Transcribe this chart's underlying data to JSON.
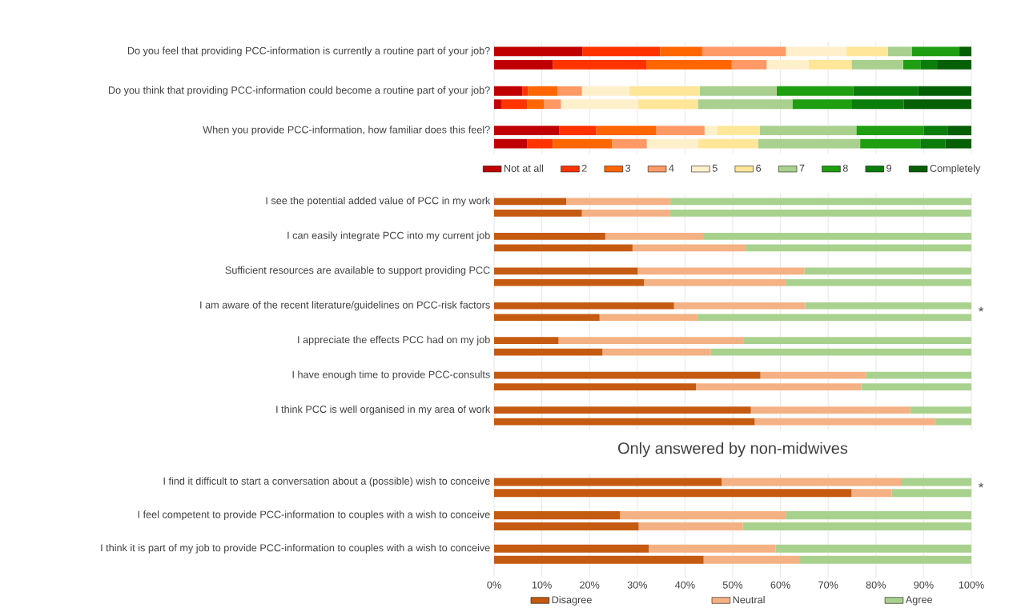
{
  "chart_data": [
    {
      "type": "bar",
      "orientation": "horizontal",
      "stacked": true,
      "grid": "x",
      "legend": "bottom",
      "tick_labels": "y",
      "xlim": [
        0,
        100
      ],
      "xticks": [
        {
          "value": 0,
          "label": null
        },
        {
          "value": 10,
          "label": null
        },
        {
          "value": 20,
          "label": null
        },
        {
          "value": 30,
          "label": null
        },
        {
          "value": 40,
          "label": null
        },
        {
          "value": 50,
          "label": null
        },
        {
          "value": 60,
          "label": null
        },
        {
          "value": 70,
          "label": null
        },
        {
          "value": 80,
          "label": null
        },
        {
          "value": 90,
          "label": null
        },
        {
          "value": 100,
          "label": null
        }
      ],
      "categories": [
        "Do you feel that providing PCC-information is currently a routine part of your job?",
        null,
        "Do you think that providing PCC-information could become a routine part of your job?",
        null,
        "When you provide PCC-information, how familiar does this feel?",
        null
      ],
      "series": [
        {
          "name": "Not at all",
          "color": "#c00000",
          "values": [
            18.5,
            12.3,
            5.9,
            1.5,
            13.6,
            6.9
          ]
        },
        {
          "name": "2",
          "color": "#ff3300",
          "values": [
            16.3,
            19.7,
            1.2,
            5.4,
            7.8,
            5.4
          ]
        },
        {
          "name": "3",
          "color": "#ff6600",
          "values": [
            8.8,
            17.8,
            6.2,
            3.6,
            12.6,
            12.4
          ]
        },
        {
          "name": "4",
          "color": "#ff9966",
          "values": [
            17.5,
            7.3,
            5.1,
            3.5,
            10.1,
            7.3
          ]
        },
        {
          "name": "5",
          "color": "#fff0cc",
          "values": [
            12.7,
            8.8,
            9.9,
            16.2,
            2.6,
            10.7
          ]
        },
        {
          "name": "6",
          "color": "#ffe699",
          "values": [
            8.7,
            9.0,
            14.8,
            12.5,
            9.0,
            12.6
          ]
        },
        {
          "name": "7",
          "color": "#a9d08e",
          "values": [
            5.0,
            10.8,
            16.1,
            19.8,
            20.2,
            21.4
          ]
        },
        {
          "name": "8",
          "color": "#1e9e10",
          "values": [
            10.0,
            3.6,
            16.1,
            12.5,
            14.1,
            12.6
          ]
        },
        {
          "name": "9",
          "color": "#0a7d0a",
          "values": [
            0,
            3.5,
            13.6,
            10.8,
            5.0,
            5.3
          ]
        },
        {
          "name": "Completely",
          "color": "#055f05",
          "values": [
            2.5,
            7.2,
            11.1,
            14.2,
            5.0,
            5.4
          ]
        }
      ]
    },
    {
      "type": "bar",
      "orientation": "horizontal",
      "stacked": true,
      "grid": "x",
      "tick_labels": "y",
      "xlim": [
        0,
        100
      ],
      "xticks": [
        {
          "value": 0,
          "label": null
        },
        {
          "value": 10,
          "label": null
        },
        {
          "value": 20,
          "label": null
        },
        {
          "value": 30,
          "label": null
        },
        {
          "value": 40,
          "label": null
        },
        {
          "value": 50,
          "label": null
        },
        {
          "value": 60,
          "label": null
        },
        {
          "value": 70,
          "label": null
        },
        {
          "value": 80,
          "label": null
        },
        {
          "value": 90,
          "label": null
        },
        {
          "value": 100,
          "label": null
        }
      ],
      "categories": [
        "I see the potential added value of PCC in my work",
        null,
        "I can easily integrate PCC into my current job",
        null,
        "Sufficient resources are available to support providing PCC",
        null,
        "I am aware of the recent literature/guidelines on PCC-risk factors",
        null,
        "I appreciate the effects PCC had on my job",
        null,
        "I have enough time to provide PCC-consults",
        null,
        "I think PCC is well organised in my area of work",
        null
      ],
      "series": [
        {
          "color": "#c55a11",
          "values": [
            15.1,
            18.4,
            23.3,
            29.0,
            30.1,
            31.4,
            37.7,
            22.1,
            13.5,
            22.7,
            55.8,
            42.3,
            53.8,
            54.6
          ]
        },
        {
          "color": "#f4b183",
          "values": [
            21.8,
            18.5,
            20.5,
            23.7,
            34.9,
            29.7,
            27.5,
            20.5,
            38.7,
            22.7,
            22.1,
            34.6,
            33.4,
            37.8
          ]
        },
        {
          "color": "#a9d18e",
          "values": [
            63.1,
            63.1,
            56.2,
            47.3,
            35.0,
            38.9,
            34.8,
            57.4,
            47.8,
            54.6,
            22.1,
            23.1,
            12.8,
            7.6
          ]
        }
      ],
      "annotations": [
        {
          "text": "*",
          "x": 100,
          "y": "I am aware of the recent literature/guidelines on PCC-risk factors"
        }
      ]
    },
    {
      "type": "bar",
      "orientation": "horizontal",
      "stacked": true,
      "grid": "x",
      "legend": "bottom",
      "title": "Only answered by non-midwives",
      "xlim": [
        0,
        100
      ],
      "xticks": [
        {
          "value": 0,
          "label": "0%"
        },
        {
          "value": 10,
          "label": "10%"
        },
        {
          "value": 20,
          "label": "20%"
        },
        {
          "value": 30,
          "label": "30%"
        },
        {
          "value": 40,
          "label": "40%"
        },
        {
          "value": 50,
          "label": "50%"
        },
        {
          "value": 60,
          "label": "60%"
        },
        {
          "value": 70,
          "label": "70%"
        },
        {
          "value": 80,
          "label": "80%"
        },
        {
          "value": 90,
          "label": "90%"
        },
        {
          "value": 100,
          "label": "100%"
        }
      ],
      "categories": [
        "I find it difficult to start a conversation about a (possible) wish to conceive",
        null,
        "I feel competent to provide PCC-information to couples with a wish to conceive",
        null,
        "I think it is part of my job to provide PCC-information to couples with a wish to conceive",
        null
      ],
      "series": [
        {
          "name": "Disagree",
          "color": "#c55a11",
          "values": [
            47.7,
            74.9,
            26.4,
            30.3,
            32.4,
            43.9
          ]
        },
        {
          "name": "Neutral",
          "color": "#f4b183",
          "values": [
            37.7,
            8.4,
            34.7,
            21.8,
            26.6,
            20.0
          ]
        },
        {
          "name": "Agree",
          "color": "#a9d18e",
          "values": [
            14.6,
            16.7,
            38.9,
            47.9,
            41.0,
            36.1
          ]
        }
      ],
      "annotations": [
        {
          "text": "*",
          "x": 100,
          "y": "I find it difficult to start a conversation about a (possible) wish to conceive"
        }
      ]
    }
  ]
}
